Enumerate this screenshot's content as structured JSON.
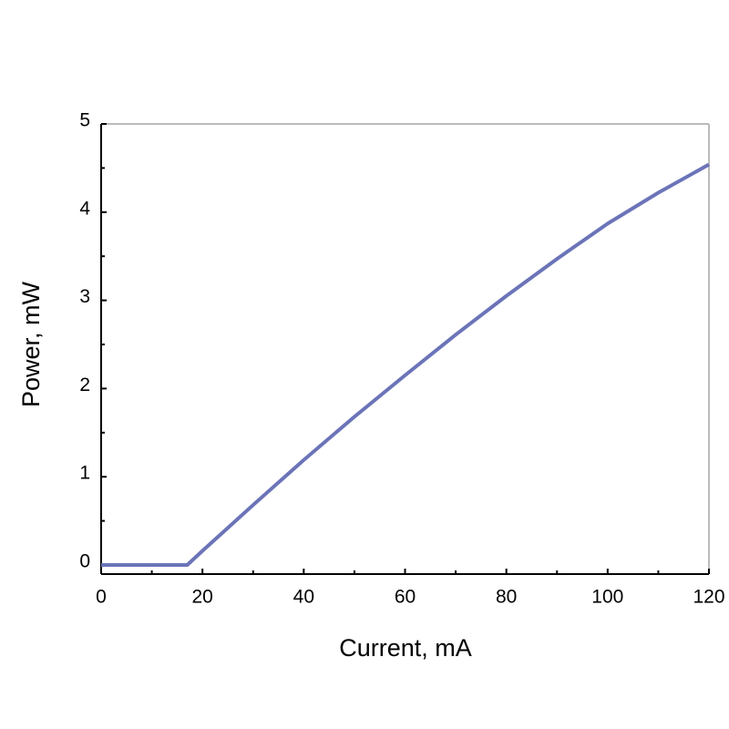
{
  "chart_data": {
    "type": "line",
    "x_label": "Current, mA",
    "y_label": "Power, mW",
    "x": [
      0,
      10,
      17,
      20,
      30,
      40,
      50,
      60,
      70,
      80,
      90,
      100,
      110,
      120
    ],
    "series": [
      {
        "color": "#6b74b8",
        "values": [
          0,
          0,
          0,
          0.16,
          0.68,
          1.19,
          1.68,
          2.15,
          2.61,
          3.05,
          3.47,
          3.87,
          4.22,
          4.54
        ]
      }
    ],
    "xlim": [
      0,
      120
    ],
    "xticks": [
      0,
      20,
      40,
      60,
      80,
      100,
      120
    ],
    "xminor_ticks": [
      10,
      30,
      50,
      70,
      90,
      110
    ],
    "ylim": [
      0,
      5
    ],
    "yticks": [
      0,
      1,
      2,
      3,
      4,
      5
    ],
    "yminor_ticks": [
      0.5,
      1.5,
      2.5,
      3.5,
      4.5
    ]
  }
}
